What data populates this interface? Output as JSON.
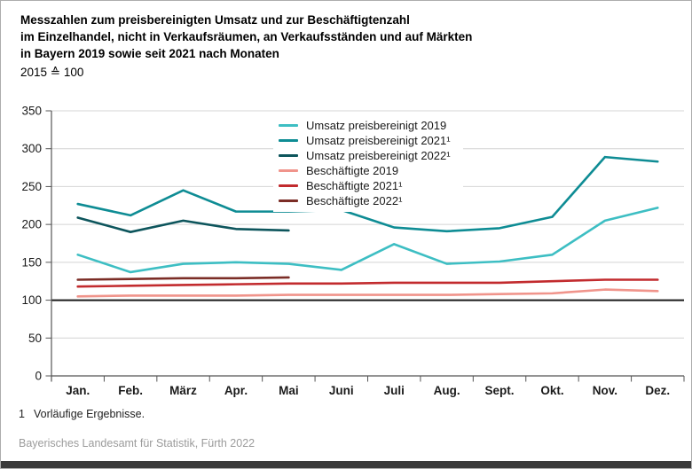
{
  "header": {
    "title_lines": [
      "Messzahlen zum preisbereinigten Umsatz und zur Beschäftigtenzahl",
      "im Einzelhandel, nicht in Verkaufsräumen, an Verkaufsständen und auf Märkten",
      "in Bayern 2019 sowie seit 2021 nach Monaten"
    ],
    "subtitle": "2015 ≙ 100"
  },
  "chart_data": {
    "type": "line",
    "title": "Messzahlen zum preisbereinigten Umsatz und zur Beschäftigtenzahl im Einzelhandel, nicht in Verkaufsräumen, an Verkaufsständen und auf Märkten in Bayern 2019 sowie seit 2021 nach Monaten",
    "subtitle": "2015 ≙ 100",
    "categories": [
      "Jan.",
      "Feb.",
      "März",
      "Apr.",
      "Mai",
      "Juni",
      "Juli",
      "Aug.",
      "Sept.",
      "Okt.",
      "Nov.",
      "Dez."
    ],
    "y_axis": {
      "min": 0,
      "max": 350,
      "step": 50,
      "ticks": [
        0,
        50,
        100,
        150,
        200,
        250,
        300,
        350
      ],
      "reference_line": 100
    },
    "grid": true,
    "legend_position": "inside-top-center",
    "colors": {
      "gridline": "#d4d4d4",
      "axis": "#555555",
      "reference_line": "#1a1a1a",
      "label": "#1a1a1a"
    },
    "series": [
      {
        "name": "Umsatz preisbereinigt 2019",
        "color": "#3dbec3",
        "values": [
          160,
          137,
          148,
          150,
          148,
          140,
          174,
          148,
          151,
          160,
          205,
          222
        ]
      },
      {
        "name": "Umsatz preisbereinigt 2021¹",
        "color": "#0e8c94",
        "values": [
          227,
          212,
          245,
          217,
          217,
          219,
          196,
          191,
          195,
          210,
          289,
          283
        ]
      },
      {
        "name": "Umsatz preisbereinigt 2022¹",
        "color": "#0d555c",
        "values": [
          209,
          190,
          205,
          194,
          192,
          null,
          null,
          null,
          null,
          null,
          null,
          null
        ]
      },
      {
        "name": "Beschäftigte 2019",
        "color": "#f0948b",
        "values": [
          105,
          106,
          106,
          106,
          107,
          107,
          107,
          107,
          108,
          109,
          114,
          112
        ]
      },
      {
        "name": "Beschäftigte 2021¹",
        "color": "#c22b2e",
        "values": [
          118,
          119,
          120,
          121,
          122,
          122,
          123,
          123,
          123,
          125,
          127,
          127
        ]
      },
      {
        "name": "Beschäftigte 2022¹",
        "color": "#7b2d26",
        "values": [
          127,
          128,
          129,
          129,
          130,
          null,
          null,
          null,
          null,
          null,
          null,
          null
        ]
      }
    ]
  },
  "footer": {
    "footnote_marker": "1",
    "footnote_text": "Vorläufige Ergebnisse.",
    "source": "Bayerisches Landesamt für Statistik, Fürth 2022"
  }
}
